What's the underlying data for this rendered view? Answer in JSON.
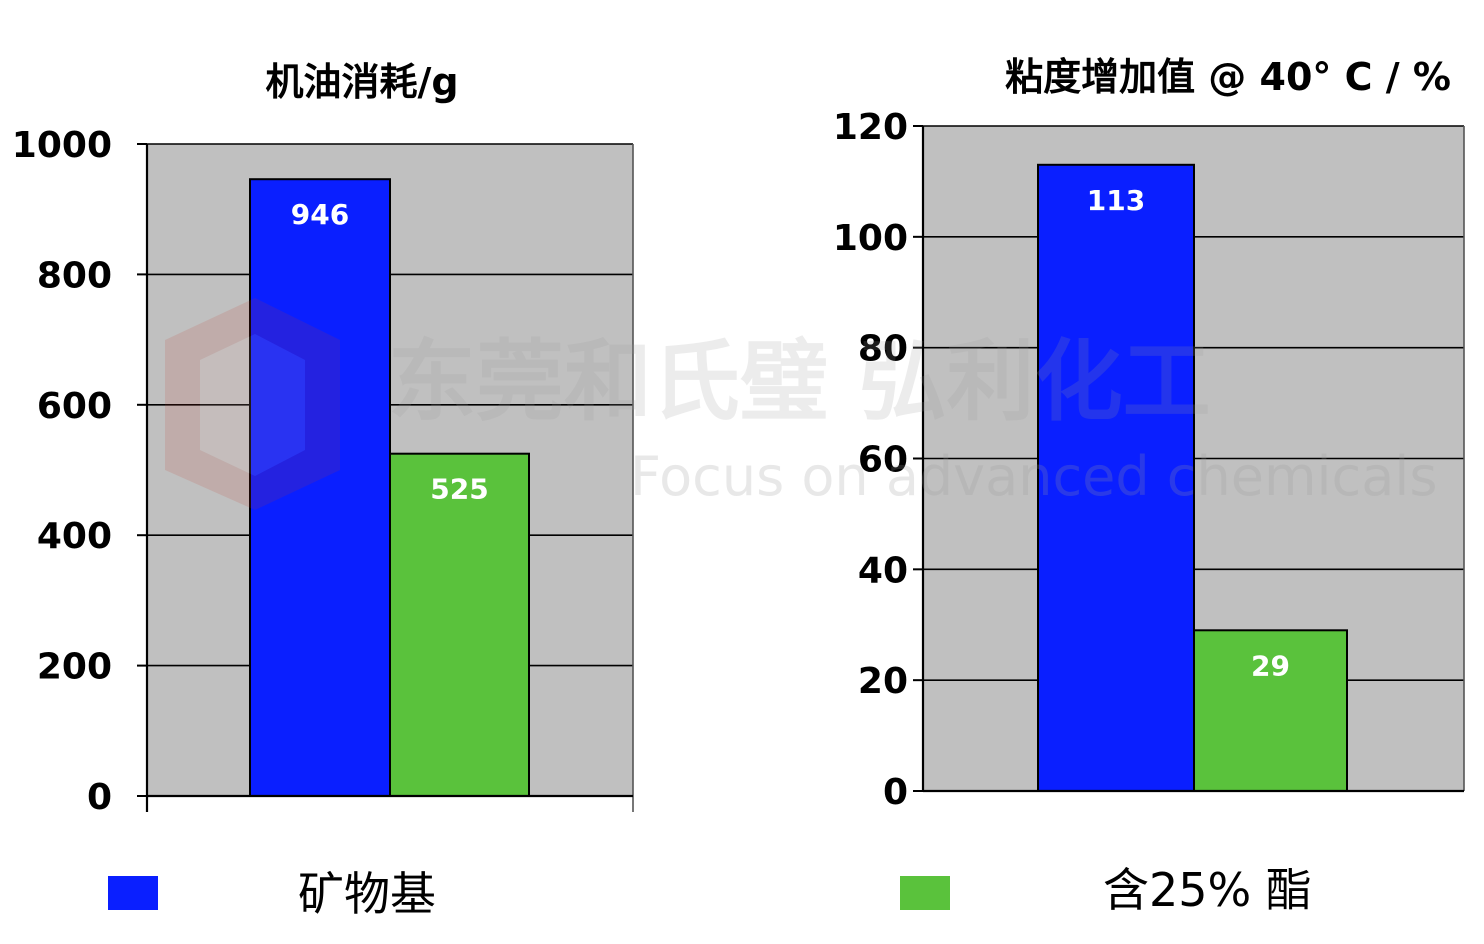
{
  "chart_data": [
    {
      "type": "bar",
      "title": "机油消耗/g",
      "categories": [
        "矿物基",
        "含25% 酯"
      ],
      "values": [
        946,
        525
      ],
      "ylim": [
        0,
        1000
      ],
      "yticks": [
        0,
        200,
        400,
        600,
        800,
        1000
      ],
      "grid": true,
      "colors": [
        "#0a1fff",
        "#5ac23c"
      ]
    },
    {
      "type": "bar",
      "title": "粘度增加值 @ 40° C / %",
      "categories": [
        "矿物基",
        "含25% 酯"
      ],
      "values": [
        113,
        29
      ],
      "ylim": [
        0,
        120
      ],
      "yticks": [
        0,
        20,
        40,
        60,
        80,
        100,
        120
      ],
      "grid": true,
      "colors": [
        "#0a1fff",
        "#5ac23c"
      ]
    }
  ],
  "legend": {
    "items": [
      {
        "label": "矿物基",
        "color": "#0a1fff"
      },
      {
        "label": "含25% 酯",
        "color": "#5ac23c"
      }
    ]
  },
  "watermark": {
    "company_cn": "东莞和氏璧 弘利化工",
    "tagline": "Focus on advanced chemicals"
  },
  "style": {
    "plot_bg": "#c0c0c0",
    "grid_color": "#000000",
    "axis_color": "#000000"
  }
}
